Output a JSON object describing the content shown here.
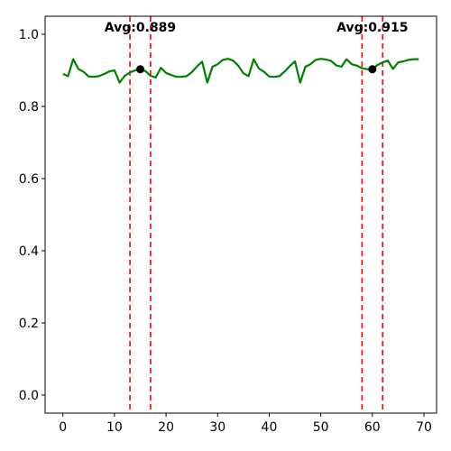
{
  "chart_data": {
    "type": "line",
    "title": "",
    "xlabel": "",
    "ylabel": "",
    "xlim": [
      -3.45,
      72.45
    ],
    "ylim": [
      -0.05,
      1.05
    ],
    "xticks": [
      0,
      10,
      20,
      30,
      40,
      50,
      60,
      70
    ],
    "yticks": [
      0.0,
      0.2,
      0.4,
      0.6,
      0.8,
      1.0
    ],
    "ytick_labels": [
      "0.0",
      "0.2",
      "0.4",
      "0.6",
      "0.8",
      "1.0"
    ],
    "grid": false,
    "colors": {
      "line": "#008000",
      "vline": "#ff0000",
      "marker": "#000000"
    },
    "series": [
      {
        "x": [
          0,
          1,
          2,
          3,
          4,
          5,
          6,
          7,
          8,
          9,
          10,
          11,
          12,
          13,
          14,
          15,
          16,
          17,
          18,
          19,
          20,
          21,
          22,
          23,
          24,
          25,
          26,
          27,
          28,
          29,
          30,
          31,
          32,
          33,
          34,
          35,
          36,
          37,
          38,
          39,
          40,
          41,
          42,
          43,
          44,
          45,
          46,
          47,
          48,
          49,
          50,
          51,
          52,
          53,
          54,
          55,
          56,
          57,
          58,
          59,
          60,
          61,
          62,
          63,
          64,
          65,
          66,
          67,
          68,
          69
        ],
        "values": [
          0.89,
          0.884,
          0.931,
          0.904,
          0.896,
          0.883,
          0.882,
          0.884,
          0.89,
          0.897,
          0.9,
          0.866,
          0.885,
          0.894,
          0.9,
          0.903,
          0.898,
          0.885,
          0.88,
          0.907,
          0.893,
          0.887,
          0.882,
          0.882,
          0.884,
          0.895,
          0.911,
          0.924,
          0.866,
          0.91,
          0.917,
          0.929,
          0.932,
          0.927,
          0.913,
          0.892,
          0.884,
          0.931,
          0.905,
          0.896,
          0.883,
          0.882,
          0.884,
          0.897,
          0.912,
          0.925,
          0.866,
          0.91,
          0.917,
          0.929,
          0.932,
          0.93,
          0.926,
          0.914,
          0.91,
          0.931,
          0.917,
          0.913,
          0.906,
          0.903,
          0.904,
          0.915,
          0.922,
          0.927,
          0.904,
          0.922,
          0.925,
          0.929,
          0.931,
          0.931
        ]
      }
    ],
    "vlines": [
      13,
      17,
      58,
      62
    ],
    "markers": [
      {
        "x": 15,
        "y": 0.903
      },
      {
        "x": 60,
        "y": 0.903
      }
    ],
    "annotations": [
      {
        "text": "Avg:0.889",
        "x": 15,
        "y": 1.02
      },
      {
        "text": "Avg:0.915",
        "x": 60,
        "y": 1.02
      }
    ]
  }
}
